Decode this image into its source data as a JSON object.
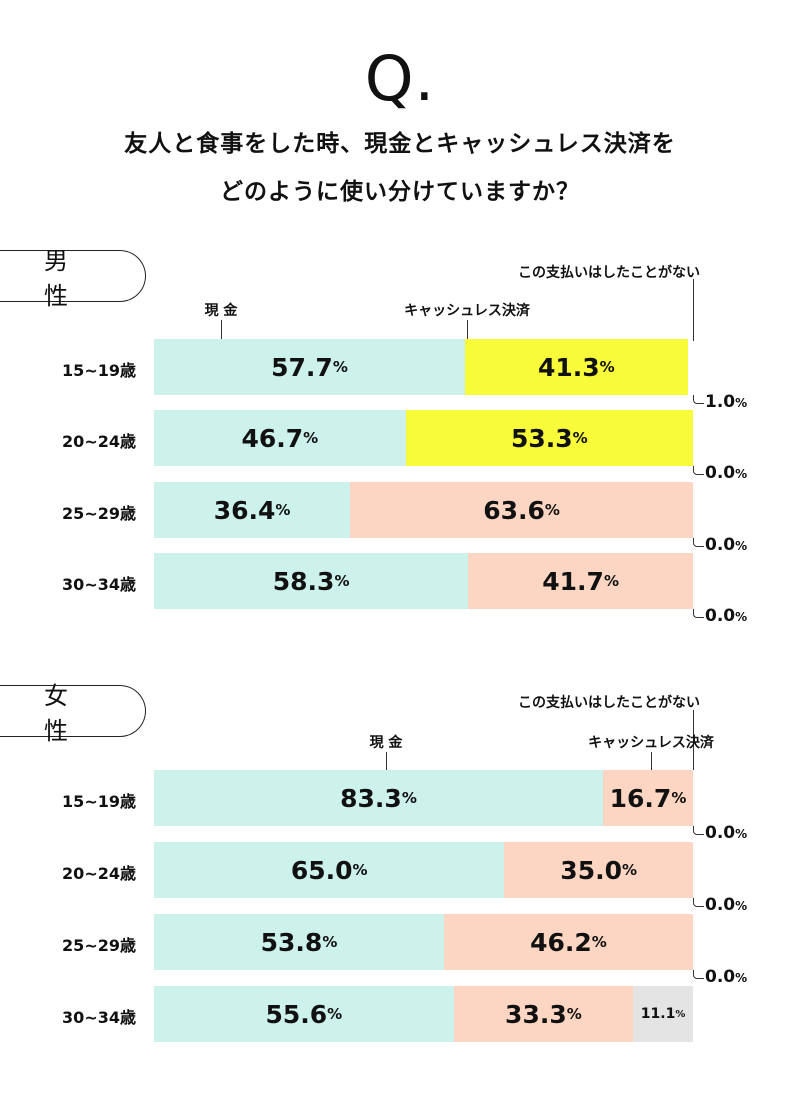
{
  "header": {
    "q_mark": "Q.",
    "question_line1": "友人と食事をした時、現金とキャッシュレス決済を",
    "question_line2": "どのように使い分けていますか？"
  },
  "colors": {
    "cash": "#cdf1eb",
    "cashless_male_young": "#f7fb3a",
    "cashless": "#fcd6c2",
    "none": "#e4e4e4"
  },
  "chart_data": [
    {
      "type": "bar",
      "orientation": "horizontal",
      "stacked": true,
      "group_label": "男 性",
      "categories": [
        "15~19歳",
        "20~24歳",
        "25~29歳",
        "30~34歳"
      ],
      "series": [
        {
          "name": "現 金",
          "values": [
            57.7,
            46.7,
            36.4,
            58.3
          ]
        },
        {
          "name": "キャッシュレス決済",
          "values": [
            41.3,
            53.3,
            63.6,
            41.7
          ]
        },
        {
          "name": "この支払いはしたことがない",
          "values": [
            1.0,
            0.0,
            0.0,
            0.0
          ]
        }
      ],
      "labels": {
        "cash": [
          "57.7",
          "46.7",
          "36.4",
          "58.3"
        ],
        "cashless": [
          "41.3",
          "53.3",
          "63.6",
          "41.7"
        ],
        "none": [
          "1.0",
          "0.0",
          "0.0",
          "0.0"
        ]
      },
      "percent_sign": "%"
    },
    {
      "type": "bar",
      "orientation": "horizontal",
      "stacked": true,
      "group_label": "女 性",
      "categories": [
        "15~19歳",
        "20~24歳",
        "25~29歳",
        "30~34歳"
      ],
      "series": [
        {
          "name": "現 金",
          "values": [
            83.3,
            65.0,
            53.8,
            55.6
          ]
        },
        {
          "name": "キャッシュレス決済",
          "values": [
            16.7,
            35.0,
            46.2,
            33.3
          ]
        },
        {
          "name": "この支払いはしたことがない",
          "values": [
            0.0,
            0.0,
            0.0,
            11.1
          ]
        }
      ],
      "labels": {
        "cash": [
          "83.3",
          "65.0",
          "53.8",
          "55.6"
        ],
        "cashless": [
          "16.7",
          "35.0",
          "46.2",
          "33.3"
        ],
        "none": [
          "0.0",
          "0.0",
          "0.0",
          "11.1"
        ]
      },
      "percent_sign": "%"
    }
  ]
}
